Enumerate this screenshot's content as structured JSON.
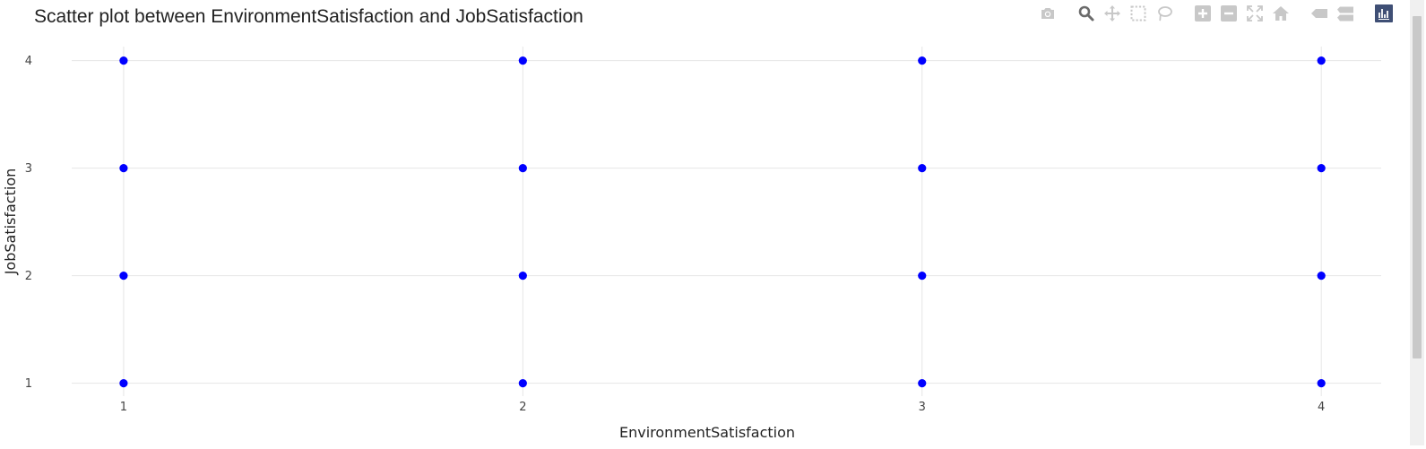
{
  "chart_data": {
    "type": "scatter",
    "title": "Scatter plot between EnvironmentSatisfaction and JobSatisfaction",
    "xlabel": "EnvironmentSatisfaction",
    "ylabel": "JobSatisfaction",
    "x": [
      1,
      1,
      1,
      1,
      2,
      2,
      2,
      2,
      3,
      3,
      3,
      3,
      4,
      4,
      4,
      4
    ],
    "y": [
      1,
      2,
      3,
      4,
      1,
      2,
      3,
      4,
      1,
      2,
      3,
      4,
      1,
      2,
      3,
      4
    ],
    "xticks": [
      "1",
      "2",
      "3",
      "4"
    ],
    "yticks": [
      "1",
      "2",
      "3",
      "4"
    ],
    "xlim": [
      0.87,
      4.15
    ],
    "ylim": [
      0.88,
      4.13
    ],
    "marker_color": "#0000ff",
    "grid": true,
    "legend": "none"
  },
  "modebar": {
    "groups": [
      [
        "camera-icon"
      ],
      [
        "zoom-icon",
        "pan-icon",
        "box-select-icon",
        "lasso-select-icon"
      ],
      [
        "zoom-in-icon",
        "zoom-out-icon",
        "autoscale-icon",
        "reset-axes-icon"
      ],
      [
        "spike-lines-icon",
        "compare-hover-icon"
      ],
      [
        "plotly-logo-icon"
      ]
    ],
    "icon_color": "#c8c8c8",
    "active_color": "#6b6b6b",
    "logo_color": "#3f4f75"
  }
}
